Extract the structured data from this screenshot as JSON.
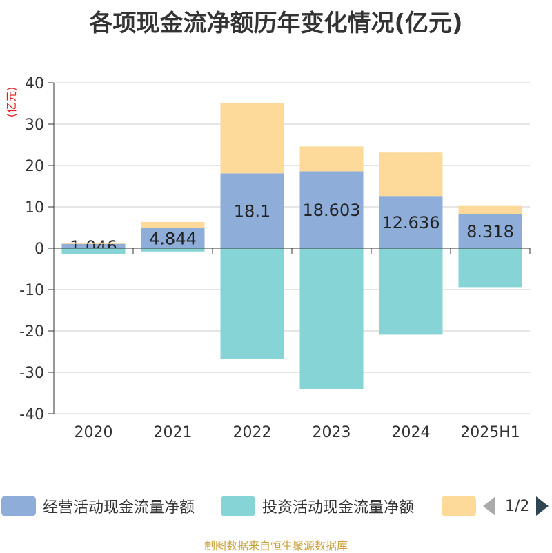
{
  "title": "各项现金流净额历年变化情况(亿元)",
  "source": "制图数据来自恒生聚源数据库",
  "legend_pager": "1/2",
  "chart_data": {
    "type": "bar",
    "stacked": true,
    "ylabel": "(亿元)",
    "ylim": [
      -40,
      40
    ],
    "yticks": [
      40,
      30,
      20,
      10,
      0,
      -10,
      -20,
      -30,
      -40
    ],
    "categories": [
      "2020",
      "2021",
      "2022",
      "2023",
      "2024",
      "2025H1"
    ],
    "series": [
      {
        "name": "经营活动现金流量净额",
        "color": "#8eadd9",
        "values": [
          1.046,
          4.844,
          18.1,
          18.603,
          12.636,
          8.318
        ],
        "labels": [
          "1.046",
          "4.844",
          "18.1",
          "18.603",
          "12.636",
          "8.318"
        ]
      },
      {
        "name": "投资活动现金流量净额",
        "color": "#86d4d6",
        "values": [
          -1.5,
          -0.8,
          -26.8,
          -34.0,
          -20.9,
          -9.4
        ]
      },
      {
        "name": "",
        "color": "#fdd99a",
        "values": [
          0.3,
          1.5,
          17.0,
          6.0,
          10.5,
          1.9
        ]
      }
    ],
    "grid": true,
    "legend_position": "bottom"
  }
}
